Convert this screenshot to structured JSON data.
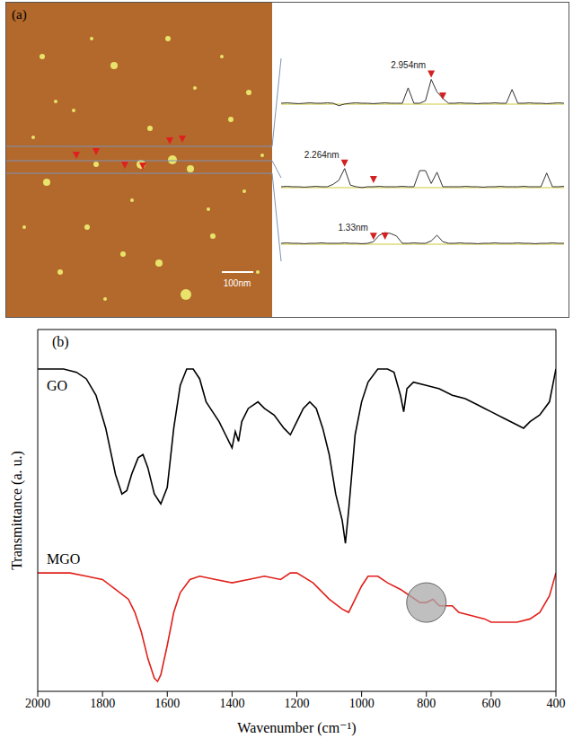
{
  "panel_a": {
    "letter": "(a)",
    "scale_bar": "100nm",
    "profiles": [
      {
        "label": "2.954nm",
        "values": [
          0,
          0.05,
          0,
          -0.05,
          0,
          0.05,
          0,
          0,
          0.05,
          0,
          -0.3,
          -0.1,
          0,
          0.05,
          0,
          0,
          -0.05,
          0,
          0.05,
          0,
          0,
          0,
          1.9,
          0,
          0,
          0.3,
          2.95,
          1.4,
          0.6,
          0,
          0,
          0.05,
          0,
          0,
          -0.05,
          0,
          0,
          0.05,
          0,
          0,
          1.7,
          0,
          0,
          0.05,
          0,
          0,
          -0.05,
          0,
          0.05,
          0
        ],
        "markers": [
          26,
          28
        ]
      },
      {
        "label": "2.264nm",
        "values": [
          0,
          0.05,
          0,
          0,
          -0.05,
          0,
          0.05,
          0,
          0,
          0.3,
          0.8,
          2.26,
          0.2,
          0,
          -0.1,
          0,
          0,
          0.05,
          0,
          0,
          0,
          0.05,
          0,
          0,
          2.0,
          2.0,
          0.4,
          1.8,
          0,
          0,
          0,
          0,
          0.05,
          0,
          0,
          -0.05,
          0,
          0,
          0.05,
          0,
          0,
          0,
          0.05,
          0,
          0,
          0,
          1.7,
          0,
          0,
          0.05
        ],
        "markers": [
          11,
          16
        ]
      },
      {
        "label": "1.33nm",
        "values": [
          0,
          0.05,
          0,
          0,
          -0.05,
          0,
          0,
          0.05,
          0,
          0,
          0,
          0.05,
          0,
          0,
          -0.05,
          0,
          0.2,
          1.0,
          1.33,
          1.2,
          0.9,
          0,
          0,
          0.05,
          0,
          0,
          0.3,
          1.0,
          0.2,
          0,
          0,
          0.05,
          0,
          0,
          -0.05,
          0,
          0,
          0.05,
          0,
          0,
          0,
          0.05,
          0,
          0,
          -0.05,
          0,
          0,
          0.05,
          0,
          0
        ],
        "markers": [
          16,
          18
        ]
      }
    ]
  },
  "chart_data": {
    "type": "line",
    "letter": "(b)",
    "x_label": "Wavenumber (cm⁻¹)",
    "y_label": "Transmittance (a. u.)",
    "xlim": [
      2000,
      400
    ],
    "xticks": [
      2000,
      1800,
      1600,
      1400,
      1200,
      1000,
      800,
      600,
      400
    ],
    "ylim": [
      0,
      110
    ],
    "yticks": [],
    "tick_labels": "x",
    "grid": false,
    "highlight": {
      "x": 800,
      "y": 27
    },
    "series": [
      {
        "name": "GO",
        "color": "#000000",
        "x": [
          2000,
          1960,
          1920,
          1880,
          1850,
          1820,
          1790,
          1760,
          1740,
          1725,
          1710,
          1690,
          1675,
          1660,
          1640,
          1620,
          1600,
          1580,
          1560,
          1540,
          1520,
          1500,
          1480,
          1460,
          1440,
          1420,
          1400,
          1390,
          1380,
          1370,
          1350,
          1320,
          1300,
          1270,
          1240,
          1220,
          1200,
          1180,
          1160,
          1140,
          1120,
          1100,
          1080,
          1070,
          1060,
          1050,
          1040,
          1020,
          1000,
          980,
          950,
          920,
          900,
          880,
          870,
          860,
          840,
          800,
          760,
          720,
          680,
          640,
          620,
          600,
          560,
          520,
          500,
          480,
          450,
          420,
          400
        ],
        "values": [
          98,
          98,
          98,
          97,
          95,
          90,
          80,
          66,
          60,
          61,
          66,
          71,
          72,
          68,
          60,
          57,
          62,
          80,
          93,
          98,
          98,
          95,
          88,
          85,
          82,
          78,
          74,
          79,
          76,
          82,
          86,
          88,
          86,
          84,
          80,
          78,
          82,
          86,
          88,
          86,
          80,
          72,
          60,
          56,
          52,
          45,
          55,
          78,
          88,
          94,
          98,
          98,
          97,
          90,
          85,
          92,
          94,
          93,
          92,
          90,
          89,
          87,
          86,
          85,
          83,
          81,
          80,
          82,
          84,
          88,
          98
        ]
      },
      {
        "name": "MGO",
        "color": "#e0201b",
        "x": [
          2000,
          1900,
          1850,
          1800,
          1760,
          1720,
          1700,
          1680,
          1660,
          1640,
          1630,
          1620,
          1600,
          1580,
          1560,
          1530,
          1500,
          1450,
          1400,
          1350,
          1300,
          1250,
          1220,
          1200,
          1150,
          1100,
          1060,
          1040,
          1020,
          1000,
          980,
          950,
          920,
          880,
          850,
          820,
          800,
          780,
          760,
          720,
          700,
          660,
          620,
          600,
          560,
          520,
          480,
          450,
          420,
          400
        ],
        "values": [
          36,
          36,
          35,
          34,
          31,
          28,
          24,
          18,
          10,
          4,
          3,
          5,
          14,
          24,
          30,
          34,
          35,
          34,
          33,
          34,
          35,
          34,
          36,
          36,
          33,
          28,
          25,
          24,
          28,
          32,
          35,
          35,
          33,
          31,
          29,
          27,
          27,
          28,
          26,
          26,
          24,
          23,
          22,
          21,
          21,
          21,
          22,
          24,
          29,
          36
        ]
      }
    ]
  }
}
